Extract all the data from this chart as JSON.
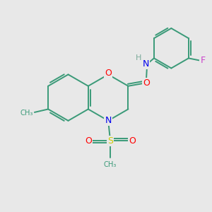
{
  "background_color": "#e8e8e8",
  "bond_color": "#3a9a78",
  "atom_colors": {
    "O": "#ff0000",
    "N": "#0000ee",
    "S": "#cccc00",
    "F": "#cc44cc",
    "H": "#7aaa99",
    "C": "#3a9a78"
  },
  "figsize": [
    3.0,
    3.0
  ],
  "dpi": 100
}
